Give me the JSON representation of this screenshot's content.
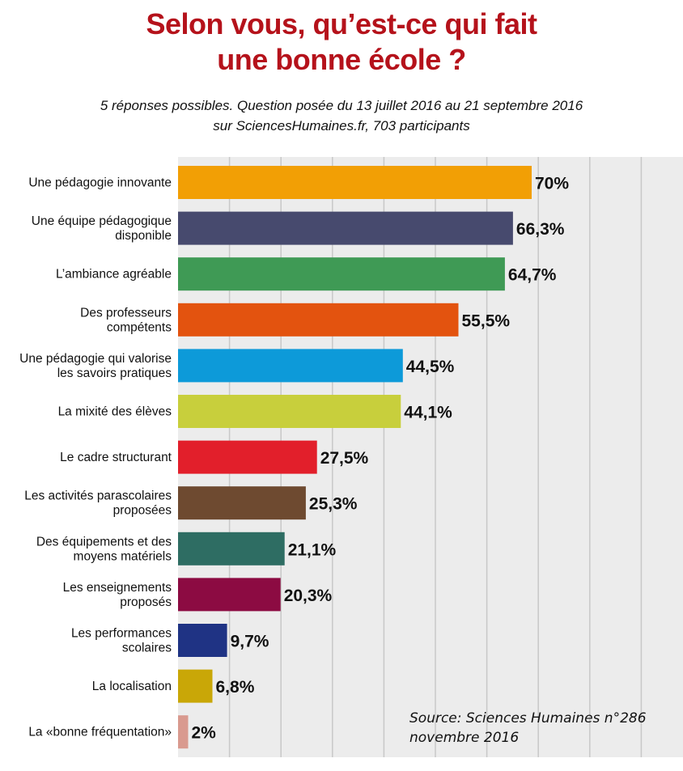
{
  "title_lines": [
    "Selon vous, qu’est-ce qui fait",
    "une bonne école ?"
  ],
  "subtitle_lines": [
    "5 réponses possibles. Question posée du 13 juillet 2016 au 21 septembre 2016",
    "sur SciencesHumaines.fr, 703 participants"
  ],
  "source_lines": [
    "Source: Sciences Humaines n°286",
    "novembre 2016"
  ],
  "colors": {
    "title": "#b5121b",
    "plot_background": "#ececec",
    "grid": "#c8c8c8"
  },
  "chart_data": {
    "type": "bar",
    "orientation": "horizontal",
    "title": "Selon vous, qu’est-ce qui fait une bonne école ?",
    "xlim": [
      0,
      100
    ],
    "grid": true,
    "categories": [
      "Une pédagogie innovante",
      "Une équipe pédagogique disponible",
      "L’ambiance agréable",
      "Des professeurs compétents",
      "Une pédagogie qui valorise les savoirs pratiques",
      "La mixité des élèves",
      "Le cadre structurant",
      "Les activités parascolaires proposées",
      "Des équipements et des moyens matériels",
      "Les enseignements proposés",
      "Les performances scolaires",
      "La localisation",
      "La «bonne fréquentation»"
    ],
    "label_lines": [
      [
        "Une pédagogie innovante"
      ],
      [
        "Une équipe pédagogique",
        "disponible"
      ],
      [
        "L’ambiance agréable"
      ],
      [
        "Des professeurs",
        "compétents"
      ],
      [
        "Une pédagogie qui valorise",
        "les savoirs pratiques"
      ],
      [
        "La mixité des élèves"
      ],
      [
        "Le cadre structurant"
      ],
      [
        "Les activités parascolaires",
        "proposées"
      ],
      [
        "Des équipements et des",
        "moyens matériels"
      ],
      [
        "Les enseignements",
        "proposés"
      ],
      [
        "Les performances",
        "scolaires"
      ],
      [
        "La localisation"
      ],
      [
        "La «bonne fréquentation»"
      ]
    ],
    "values": [
      70,
      66.3,
      64.7,
      55.5,
      44.5,
      44.1,
      27.5,
      25.3,
      21.1,
      20.3,
      9.7,
      6.8,
      2
    ],
    "value_labels": [
      "70%",
      "66,3%",
      "64,7%",
      "55,5%",
      "44,5%",
      "44,1%",
      "27,5%",
      "25,3%",
      "21,1%",
      "20,3%",
      "9,7%",
      "6,8%",
      "2%"
    ],
    "bar_colors": [
      "#f29f05",
      "#474a6e",
      "#3f9a55",
      "#e3530f",
      "#0d9ad9",
      "#c8cf3c",
      "#e21f2b",
      "#6e4a30",
      "#2e6d63",
      "#8c0b42",
      "#1f3384",
      "#c9a707",
      "#d99a8f"
    ]
  }
}
